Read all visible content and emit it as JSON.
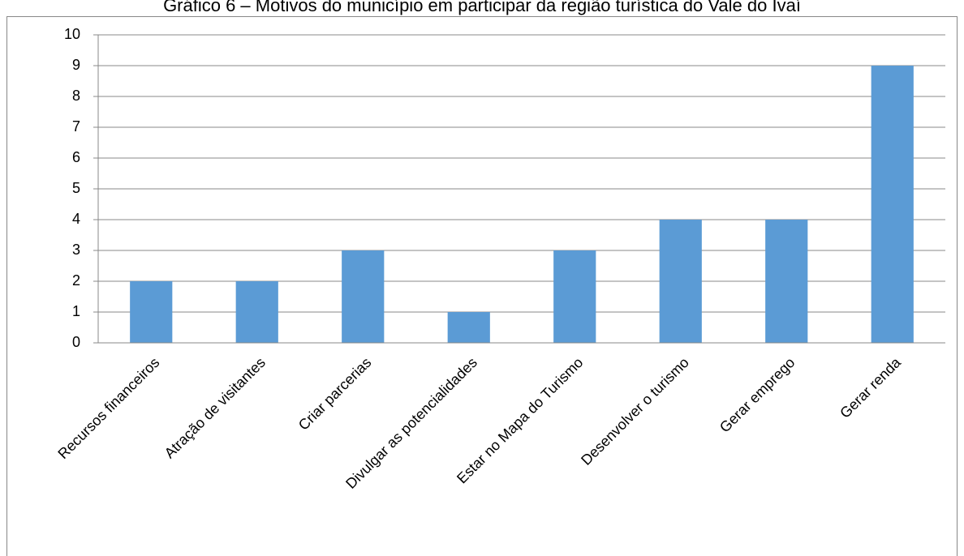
{
  "chart_data": {
    "type": "bar",
    "title": "Gráfico 6 – Motivos do município em participar da região turística do Vale do Ivaí",
    "categories": [
      "Recursos financeiros",
      "Atração de visitantes",
      "Criar parcerias",
      "Divulgar as potencialidades",
      "Estar no Mapa do Turismo",
      "Desenvolver o turismo",
      "Gerar emprego",
      "Gerar renda"
    ],
    "values": [
      2,
      2,
      3,
      1,
      3,
      4,
      4,
      9
    ],
    "color": "#5b9bd5",
    "ylim": [
      0,
      10
    ],
    "yticks": [
      0,
      1,
      2,
      3,
      4,
      5,
      6,
      7,
      8,
      9,
      10
    ],
    "grid": true
  }
}
